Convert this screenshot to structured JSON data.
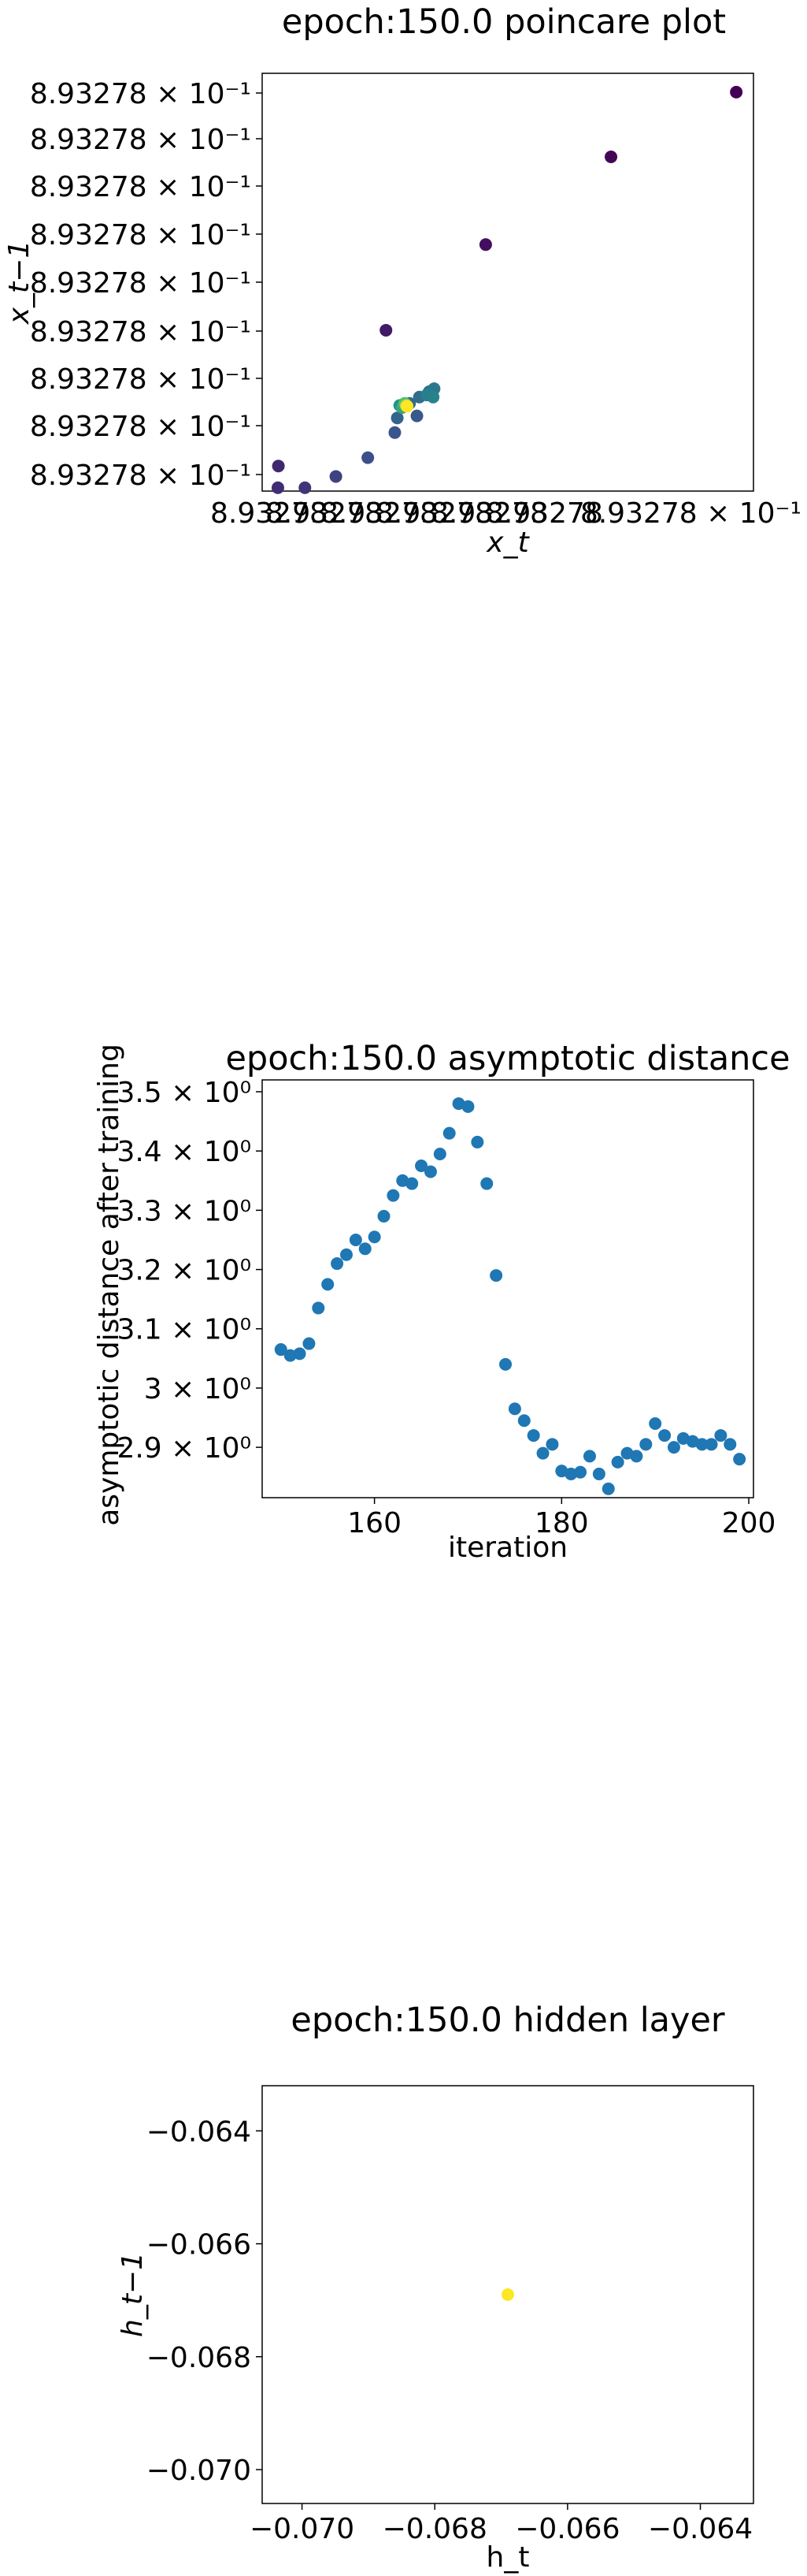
{
  "chart_data": [
    {
      "type": "scatter",
      "title": "epoch:150.0 poincare plot",
      "xlabel": "x_t",
      "ylabel": "x_t−1",
      "y_tick_labels": [
        "8.93278 × 10⁻¹",
        "8.93278 × 10⁻¹",
        "8.93278 × 10⁻¹",
        "8.93278 × 10⁻¹",
        "8.93278 × 10⁻¹",
        "8.93278 × 10⁻¹",
        "8.93278 × 10⁻¹",
        "8.93278 × 10⁻¹",
        "8.93278 × 10⁻¹"
      ],
      "x_tick_labels": [
        "8.93278",
        "8.93278",
        "8.93278",
        "8.93278",
        "8.93278",
        "8.93278",
        "8.93278 × 10⁻¹"
      ],
      "xlim": [
        0,
        1
      ],
      "ylim": [
        0,
        1
      ],
      "grid": false,
      "colormap": "viridis",
      "points": [
        {
          "x": 0.965,
          "y": 0.955,
          "c": 0.0
        },
        {
          "x": 0.71,
          "y": 0.8,
          "c": 0.02
        },
        {
          "x": 0.455,
          "y": 0.59,
          "c": 0.04
        },
        {
          "x": 0.252,
          "y": 0.385,
          "c": 0.08
        },
        {
          "x": 0.033,
          "y": 0.06,
          "c": 0.12
        },
        {
          "x": 0.032,
          "y": 0.008,
          "c": 0.14
        },
        {
          "x": 0.087,
          "y": 0.008,
          "c": 0.16
        },
        {
          "x": 0.15,
          "y": 0.035,
          "c": 0.2
        },
        {
          "x": 0.215,
          "y": 0.08,
          "c": 0.24
        },
        {
          "x": 0.27,
          "y": 0.14,
          "c": 0.26
        },
        {
          "x": 0.315,
          "y": 0.18,
          "c": 0.28
        },
        {
          "x": 0.275,
          "y": 0.175,
          "c": 0.32
        },
        {
          "x": 0.3,
          "y": 0.21,
          "c": 0.34
        },
        {
          "x": 0.32,
          "y": 0.225,
          "c": 0.36
        },
        {
          "x": 0.34,
          "y": 0.238,
          "c": 0.38
        },
        {
          "x": 0.35,
          "y": 0.245,
          "c": 0.4
        },
        {
          "x": 0.335,
          "y": 0.23,
          "c": 0.42
        },
        {
          "x": 0.348,
          "y": 0.225,
          "c": 0.44
        },
        {
          "x": 0.28,
          "y": 0.205,
          "c": 0.5
        },
        {
          "x": 0.285,
          "y": 0.2,
          "c": 0.6
        },
        {
          "x": 0.29,
          "y": 0.21,
          "c": 0.7
        },
        {
          "x": 0.293,
          "y": 0.205,
          "c": 0.85
        },
        {
          "x": 0.295,
          "y": 0.203,
          "c": 1.0
        }
      ]
    },
    {
      "type": "scatter",
      "title": "epoch:150.0 asymptotic distance",
      "xlabel": "iteration",
      "ylabel": "asymptotic distance after training",
      "xlim": [
        148,
        200.5
      ],
      "ylim": [
        2.815,
        3.52
      ],
      "x_ticks": [
        160,
        180,
        200
      ],
      "y_ticks": [
        2.9,
        3.0,
        3.1,
        3.2,
        3.3,
        3.4,
        3.5
      ],
      "x_tick_labels": [
        "160",
        "180",
        "200"
      ],
      "y_tick_labels": [
        "2.9 × 10⁰",
        "3 × 10⁰",
        "3.1 × 10⁰",
        "3.2 × 10⁰",
        "3.3 × 10⁰",
        "3.4 × 10⁰",
        "3.5 × 10⁰"
      ],
      "grid": false,
      "color": "#1f77b4",
      "x": [
        150,
        151,
        152,
        153,
        154,
        155,
        156,
        157,
        158,
        159,
        160,
        161,
        162,
        163,
        164,
        165,
        166,
        167,
        168,
        169,
        170,
        171,
        172,
        173,
        174,
        175,
        176,
        177,
        178,
        179,
        180,
        181,
        182,
        183,
        184,
        185,
        186,
        187,
        188,
        189,
        190,
        191,
        192,
        193,
        194,
        195,
        196,
        197,
        198,
        199
      ],
      "y": [
        3.065,
        3.055,
        3.058,
        3.075,
        3.135,
        3.175,
        3.21,
        3.225,
        3.25,
        3.235,
        3.255,
        3.29,
        3.325,
        3.35,
        3.345,
        3.375,
        3.365,
        3.395,
        3.43,
        3.48,
        3.475,
        3.415,
        3.345,
        3.19,
        3.04,
        2.965,
        2.945,
        2.92,
        2.89,
        2.905,
        2.86,
        2.855,
        2.858,
        2.885,
        2.855,
        2.83,
        2.875,
        2.89,
        2.885,
        2.905,
        2.94,
        2.92,
        2.9,
        2.915,
        2.91,
        2.905,
        2.905,
        2.92,
        2.905,
        2.88
      ]
    },
    {
      "type": "scatter",
      "title": "epoch:150.0 hidden layer",
      "xlabel": "h_t",
      "ylabel": "h_t−1",
      "xlim": [
        -0.0706,
        -0.0632
      ],
      "ylim": [
        -0.0706,
        -0.0632
      ],
      "x_ticks": [
        -0.07,
        -0.068,
        -0.066,
        -0.064
      ],
      "y_ticks": [
        -0.07,
        -0.068,
        -0.066,
        -0.064
      ],
      "x_tick_labels": [
        "−0.070",
        "−0.068",
        "−0.066",
        "−0.064"
      ],
      "y_tick_labels": [
        "−0.070",
        "−0.068",
        "−0.066",
        "−0.064"
      ],
      "grid": false,
      "color": "#fde725",
      "points": [
        {
          "x": -0.0669,
          "y": -0.0669
        }
      ]
    }
  ]
}
